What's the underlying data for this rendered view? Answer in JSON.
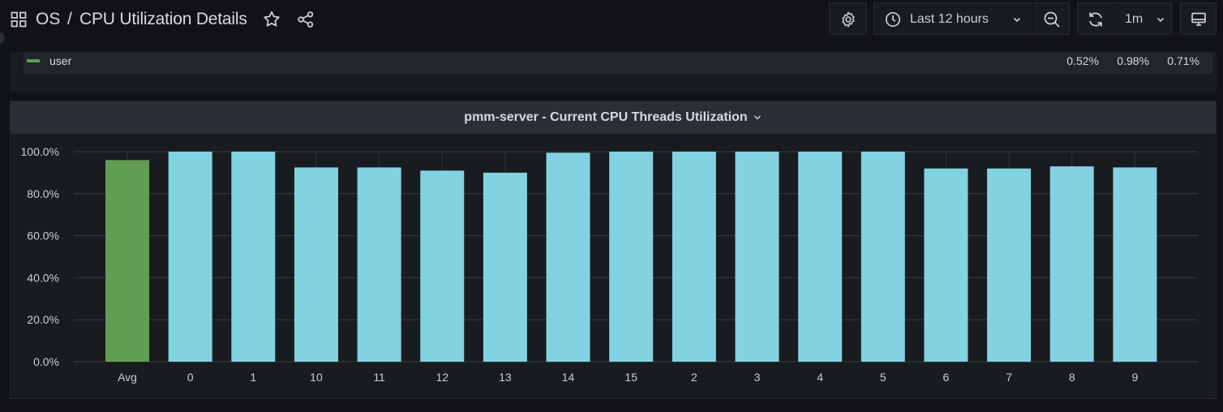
{
  "nav": {
    "breadcrumb_root": "OS",
    "breadcrumb_separator": "/",
    "title": "CPU Utilization Details",
    "time_range": "Last 12 hours",
    "refresh_interval": "1m",
    "icons": [
      "apps-grid-icon",
      "star-icon",
      "share-icon",
      "cog-icon",
      "clock-icon",
      "chevron-down-icon",
      "zoom-out-icon",
      "sync-icon",
      "monitor-icon"
    ]
  },
  "legend": {
    "rows": [
      {
        "name": "user",
        "color": "#629e51",
        "values": [
          "0.52%",
          "0.98%",
          "0.71%"
        ]
      }
    ]
  },
  "chart": {
    "title": "pmm-server - Current CPU Threads Utilization"
  },
  "chart_data": {
    "type": "bar",
    "title": "pmm-server - Current CPU Threads Utilization",
    "categories": [
      "Avg",
      "0",
      "1",
      "10",
      "11",
      "12",
      "13",
      "14",
      "15",
      "2",
      "3",
      "4",
      "5",
      "6",
      "7",
      "8",
      "9"
    ],
    "values": [
      96,
      100,
      100,
      92.5,
      92.5,
      91,
      90,
      99.5,
      100,
      100,
      100,
      100,
      100,
      92,
      92,
      93,
      92.5
    ],
    "colors": [
      "#629e51",
      "#82d2e2",
      "#82d2e2",
      "#82d2e2",
      "#82d2e2",
      "#82d2e2",
      "#82d2e2",
      "#82d2e2",
      "#82d2e2",
      "#82d2e2",
      "#82d2e2",
      "#82d2e2",
      "#82d2e2",
      "#82d2e2",
      "#82d2e2",
      "#82d2e2",
      "#82d2e2"
    ],
    "yticks": [
      "0.0%",
      "20.0%",
      "40.0%",
      "60.0%",
      "80.0%",
      "100.0%"
    ],
    "ylim": [
      0,
      100
    ],
    "grid": true,
    "xlabel": "",
    "ylabel": ""
  }
}
